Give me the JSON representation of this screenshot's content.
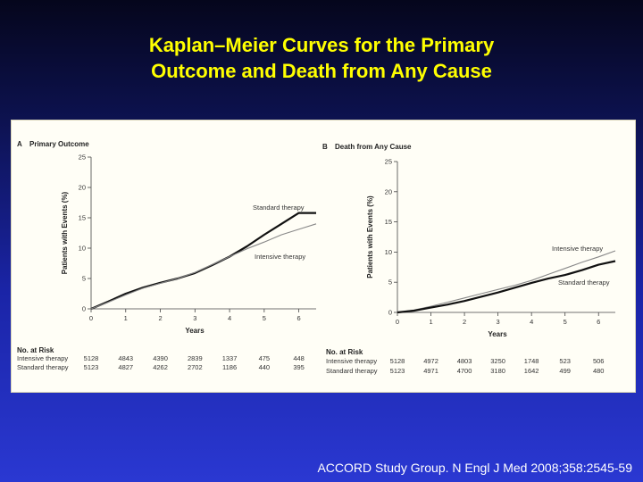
{
  "title": {
    "line1": "Kaplan–Meier Curves for the Primary",
    "line2": "Outcome and Death from Any Cause"
  },
  "citation": "ACCORD Study Group. N Engl J Med 2008;358:2545-59",
  "colors": {
    "title": "#ffff00",
    "standard": "#111111",
    "intensive": "#888888",
    "panel_bg": "#fffef6"
  },
  "chart_data": [
    {
      "type": "line",
      "panel_letter": "A",
      "title": "Primary Outcome",
      "xlabel": "Years",
      "ylabel": "Patients with Events (%)",
      "xlim": [
        0,
        6.5
      ],
      "ylim": [
        0,
        25
      ],
      "x_ticks": [
        0,
        1,
        2,
        3,
        4,
        5,
        6
      ],
      "y_ticks": [
        0,
        5,
        10,
        15,
        20,
        25
      ],
      "series": [
        {
          "name": "Standard therapy",
          "label": "Standard therapy",
          "style": "thick",
          "points": [
            [
              0,
              0
            ],
            [
              0.5,
              1.2
            ],
            [
              1,
              2.5
            ],
            [
              1.5,
              3.5
            ],
            [
              2,
              4.3
            ],
            [
              2.5,
              5.0
            ],
            [
              3,
              5.9
            ],
            [
              3.5,
              7.2
            ],
            [
              4,
              8.6
            ],
            [
              4.5,
              10.3
            ],
            [
              5,
              12.2
            ],
            [
              5.5,
              14.0
            ],
            [
              6,
              15.8
            ],
            [
              6.5,
              15.8
            ]
          ]
        },
        {
          "name": "Intensive therapy",
          "label": "Intensive therapy",
          "style": "thin",
          "points": [
            [
              0,
              0
            ],
            [
              0.5,
              1.1
            ],
            [
              1,
              2.3
            ],
            [
              1.5,
              3.4
            ],
            [
              2,
              4.2
            ],
            [
              2.5,
              5.0
            ],
            [
              3,
              6.0
            ],
            [
              3.5,
              7.3
            ],
            [
              4,
              8.6
            ],
            [
              4.5,
              9.9
            ],
            [
              5,
              11.0
            ],
            [
              5.5,
              12.2
            ],
            [
              6,
              13.1
            ],
            [
              6.5,
              14.0
            ]
          ]
        }
      ],
      "risk_table": {
        "header": "No. at Risk",
        "rows": [
          {
            "label": "Intensive therapy",
            "values": [
              "5128",
              "4843",
              "4390",
              "2839",
              "1337",
              "475",
              "448"
            ]
          },
          {
            "label": "Standard therapy",
            "values": [
              "5123",
              "4827",
              "4262",
              "2702",
              "1186",
              "440",
              "395"
            ]
          }
        ]
      }
    },
    {
      "type": "line",
      "panel_letter": "B",
      "title": "Death from Any Cause",
      "xlabel": "Years",
      "ylabel": "Patients with Events (%)",
      "xlim": [
        0,
        6.5
      ],
      "ylim": [
        0,
        25
      ],
      "x_ticks": [
        0,
        1,
        2,
        3,
        4,
        5,
        6
      ],
      "y_ticks": [
        0,
        5,
        10,
        15,
        20,
        25
      ],
      "series": [
        {
          "name": "Intensive therapy",
          "label": "Intensive therapy",
          "style": "thin",
          "points": [
            [
              0,
              0
            ],
            [
              0.5,
              0.4
            ],
            [
              1,
              1.0
            ],
            [
              1.5,
              1.7
            ],
            [
              2,
              2.4
            ],
            [
              2.5,
              3.1
            ],
            [
              3,
              3.8
            ],
            [
              3.5,
              4.5
            ],
            [
              4,
              5.3
            ],
            [
              4.5,
              6.3
            ],
            [
              5,
              7.3
            ],
            [
              5.5,
              8.3
            ],
            [
              6,
              9.2
            ],
            [
              6.5,
              10.2
            ]
          ]
        },
        {
          "name": "Standard therapy",
          "label": "Standard therapy",
          "style": "thick",
          "points": [
            [
              0,
              0
            ],
            [
              0.5,
              0.3
            ],
            [
              1,
              0.8
            ],
            [
              1.5,
              1.3
            ],
            [
              2,
              1.9
            ],
            [
              2.5,
              2.6
            ],
            [
              3,
              3.3
            ],
            [
              3.5,
              4.1
            ],
            [
              4,
              4.9
            ],
            [
              4.5,
              5.6
            ],
            [
              5,
              6.2
            ],
            [
              5.5,
              7.0
            ],
            [
              6,
              7.9
            ],
            [
              6.5,
              8.5
            ]
          ]
        }
      ],
      "risk_table": {
        "header": "No. at Risk",
        "rows": [
          {
            "label": "Intensive therapy",
            "values": [
              "5128",
              "4972",
              "4803",
              "3250",
              "1748",
              "523",
              "506"
            ]
          },
          {
            "label": "Standard therapy",
            "values": [
              "5123",
              "4971",
              "4700",
              "3180",
              "1642",
              "499",
              "480"
            ]
          }
        ]
      }
    }
  ]
}
